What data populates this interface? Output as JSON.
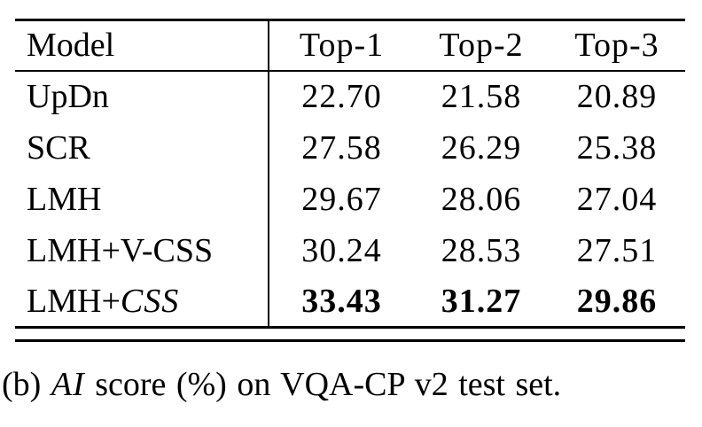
{
  "colors": {
    "text": "#000000",
    "background": "#ffffff"
  },
  "table": {
    "columns": [
      "Model",
      "Top-1",
      "Top-2",
      "Top-3"
    ],
    "rows": [
      {
        "model_prefix": "UpDn",
        "model_cal": "",
        "values": [
          "22.70",
          "21.58",
          "20.89"
        ],
        "bold": false
      },
      {
        "model_prefix": "SCR",
        "model_cal": "",
        "values": [
          "27.58",
          "26.29",
          "25.38"
        ],
        "bold": false
      },
      {
        "model_prefix": "LMH",
        "model_cal": "",
        "values": [
          "29.67",
          "28.06",
          "27.04"
        ],
        "bold": false
      },
      {
        "model_prefix": "LMH+V-CSS",
        "model_cal": "",
        "values": [
          "30.24",
          "28.53",
          "27.51"
        ],
        "bold": false
      },
      {
        "model_prefix": "LMH+",
        "model_cal": "CSS",
        "values": [
          "33.43",
          "31.27",
          "29.86"
        ],
        "bold": true
      }
    ]
  },
  "caption": {
    "prefix": "(b) ",
    "mathcal_text": "AI",
    "suffix": " score (%) on VQA-CP v2 test set."
  }
}
